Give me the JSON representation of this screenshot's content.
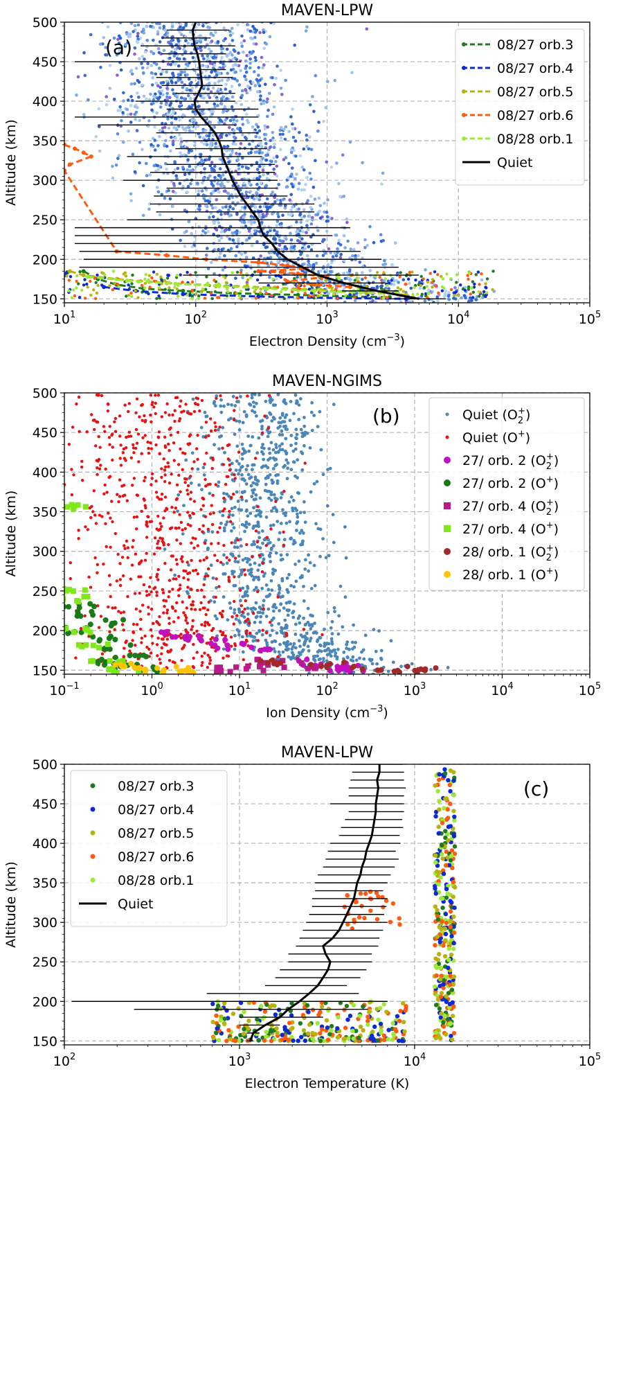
{
  "chart_data": [
    {
      "type": "line",
      "title": "MAVEN-LPW",
      "panel_label": "(a)",
      "xlabel": "Electron Density (cm",
      "xlabel_exp": "−3",
      "xlabel_end": ")",
      "ylabel": "Altitude (km)",
      "xscale": "log",
      "xlim": [
        10,
        100000
      ],
      "ylim": [
        145,
        500
      ],
      "xticks": [
        {
          "v": 10,
          "base": "10",
          "exp": "1"
        },
        {
          "v": 100,
          "base": "10",
          "exp": "2"
        },
        {
          "v": 1000,
          "base": "10",
          "exp": "3"
        },
        {
          "v": 10000,
          "base": "10",
          "exp": "4"
        },
        {
          "v": 100000,
          "base": "10",
          "exp": "5"
        }
      ],
      "yticks": [
        150,
        200,
        250,
        300,
        350,
        400,
        450,
        500
      ],
      "grid": true,
      "legend_position": "top-right",
      "legend": [
        {
          "label": "08/27 orb.3",
          "color": "#1f7a1f",
          "style": "dashed"
        },
        {
          "label": "08/27 orb.4",
          "color": "#0a2bd1",
          "style": "dashed"
        },
        {
          "label": "08/27 orb.5",
          "color": "#b8b210",
          "style": "dashed"
        },
        {
          "label": "08/27 orb.6",
          "color": "#ff5a10",
          "style": "dashed"
        },
        {
          "label": "08/28 orb.1",
          "color": "#9ee83a",
          "style": "dashed"
        },
        {
          "label": "Quiet",
          "color": "#000000",
          "style": "solid"
        }
      ],
      "quiet": {
        "alt": [
          150,
          160,
          170,
          180,
          190,
          200,
          210,
          220,
          230,
          240,
          250,
          260,
          270,
          280,
          290,
          300,
          310,
          320,
          330,
          340,
          350,
          360,
          370,
          380,
          390,
          400,
          410,
          420,
          430,
          440,
          450,
          460,
          470,
          480,
          490,
          500
        ],
        "val": [
          5000,
          2400,
          1350,
          850,
          650,
          500,
          420,
          380,
          330,
          310,
          300,
          270,
          245,
          220,
          205,
          190,
          180,
          170,
          160,
          158,
          150,
          140,
          125,
          110,
          100,
          98,
          105,
          112,
          110,
          108,
          106,
          103,
          98,
          96,
          95,
          100
        ],
        "lo": [
          3000,
          1300,
          300,
          80,
          13,
          14,
          13,
          12,
          12,
          12,
          30,
          50,
          45,
          48,
          60,
          28,
          45,
          60,
          30,
          70,
          80,
          50,
          18,
          12,
          60,
          35,
          70,
          55,
          50,
          55,
          12,
          55,
          38,
          55,
          60,
          80
        ],
        "hi": [
          8000,
          3500,
          2800,
          5000,
          3500,
          2600,
          1800,
          900,
          1100,
          1500,
          650,
          800,
          800,
          500,
          420,
          420,
          400,
          400,
          320,
          350,
          320,
          300,
          200,
          300,
          300,
          200,
          200,
          160,
          190,
          170,
          220,
          170,
          200,
          130,
          180,
          130
        ]
      },
      "scatter_quiet_color": "#3a6fd8",
      "storm_series": [
        {
          "name": "08/27 orb.3",
          "color": "#1f7a1f",
          "alt": [
            185,
            175,
            168,
            163,
            160,
            157,
            155,
            153,
            152
          ],
          "val": [
            14,
            18,
            25,
            40,
            80,
            200,
            600,
            1500,
            3000
          ]
        },
        {
          "name": "08/27 orb.4",
          "color": "#0a2bd1",
          "alt": [
            165,
            160,
            156,
            153,
            151,
            150
          ],
          "val": [
            20,
            35,
            80,
            300,
            1200,
            4000
          ]
        },
        {
          "name": "08/27 orb.5",
          "color": "#b8b210",
          "alt": [
            185,
            180,
            175,
            170,
            167,
            164,
            161,
            158,
            155
          ],
          "val": [
            11,
            14,
            25,
            60,
            150,
            400,
            900,
            2000,
            4000
          ]
        },
        {
          "name": "08/27 orb.6",
          "color": "#ff5a10",
          "alt": [
            345,
            340,
            335,
            330,
            320,
            312,
            210,
            205,
            200,
            196,
            192,
            188,
            185,
            182,
            178,
            172,
            168,
            165
          ],
          "val": [
            10,
            12,
            14,
            16,
            11,
            10,
            25,
            60,
            120,
            300,
            500,
            700,
            300,
            600,
            1000,
            500,
            800,
            1500
          ]
        },
        {
          "name": "08/28 orb.1",
          "color": "#9ee83a",
          "alt": [
            178,
            173,
            169,
            166,
            163,
            160,
            158,
            156
          ],
          "val": [
            15,
            30,
            70,
            150,
            350,
            800,
            1800,
            3500
          ]
        }
      ]
    },
    {
      "type": "scatter",
      "title": "MAVEN-NGIMS",
      "panel_label": "(b)",
      "xlabel": "Ion Density (cm",
      "xlabel_exp": "−3",
      "xlabel_end": ")",
      "ylabel": "Altitude (km)",
      "xscale": "log",
      "xlim": [
        0.1,
        100000
      ],
      "ylim": [
        145,
        500
      ],
      "xticks": [
        {
          "v": 0.1,
          "base": "10",
          "exp": "−1"
        },
        {
          "v": 1,
          "base": "10",
          "exp": "0"
        },
        {
          "v": 10,
          "base": "10",
          "exp": "1"
        },
        {
          "v": 100,
          "base": "10",
          "exp": "2"
        },
        {
          "v": 1000,
          "base": "10",
          "exp": "3"
        },
        {
          "v": 10000,
          "base": "10",
          "exp": "4"
        },
        {
          "v": 100000,
          "base": "10",
          "exp": "5"
        }
      ],
      "yticks": [
        150,
        200,
        250,
        300,
        350,
        400,
        450,
        500
      ],
      "grid": true,
      "legend_position": "top-right",
      "legend": [
        {
          "label": "Quiet (O",
          "sup": "+",
          "sub": "2",
          "end": ")",
          "color": "#4a86b8",
          "marker": "dot"
        },
        {
          "label": "Quiet (O",
          "sup": "+",
          "sub": "",
          "end": ")",
          "color": "#e81010",
          "marker": "dot"
        },
        {
          "label": "27/ orb. 2 (O",
          "sup": "+",
          "sub": "2",
          "end": ")",
          "color": "#c010c0",
          "marker": "circle"
        },
        {
          "label": "27/ orb. 2 (O",
          "sup": "+",
          "sub": "",
          "end": ")",
          "color": "#1a7a1a",
          "marker": "circle"
        },
        {
          "label": "27/ orb. 4 (O",
          "sup": "+",
          "sub": "2",
          "end": ")",
          "color": "#b81a8a",
          "marker": "square"
        },
        {
          "label": "27/ orb. 4 (O",
          "sup": "+",
          "sub": "",
          "end": ")",
          "color": "#7fe81a",
          "marker": "square"
        },
        {
          "label": "28/ orb. 1 (O",
          "sup": "+",
          "sub": "2",
          "end": ")",
          "color": "#a02a2a",
          "marker": "circle"
        },
        {
          "label": "28/ orb. 1 (O",
          "sup": "+",
          "sub": "",
          "end": ")",
          "color": "#ffc400",
          "marker": "circle"
        }
      ],
      "profiles": {
        "quiet_o2": {
          "alt": [
            150,
            160,
            170,
            180,
            190,
            200,
            215,
            230,
            250,
            270,
            290,
            310,
            330,
            350,
            370,
            390,
            410,
            430,
            450,
            470,
            490
          ],
          "val": [
            300,
            150,
            90,
            60,
            45,
            30,
            22,
            20,
            18,
            18,
            17,
            16,
            17,
            17,
            16,
            15,
            17,
            18,
            20,
            18,
            17
          ],
          "spread": 0.35
        },
        "quiet_o": {
          "alt": [
            160,
            175,
            190,
            200,
            215,
            230,
            250,
            270,
            290,
            310,
            330,
            350,
            370,
            390,
            410,
            430,
            450,
            470,
            490
          ],
          "val": [
            2,
            2.5,
            3,
            3,
            2.5,
            2,
            1.8,
            1.8,
            1.8,
            1.6,
            1.5,
            1.4,
            1.3,
            1.2,
            1.2,
            1.1,
            1.0,
            0.9,
            0.9
          ],
          "spread": 0.55
        }
      },
      "storm_points": [
        {
          "series": "27/ orb. 2 (O2+)",
          "alt": [
            195,
            190,
            185,
            180,
            175,
            160,
            155,
            152,
            150
          ],
          "val": [
            2,
            3,
            5,
            8,
            15,
            50,
            120,
            200,
            150
          ]
        },
        {
          "series": "27/ orb. 2 (O+)",
          "alt": [
            230,
            220,
            210,
            200,
            190,
            180,
            170,
            160,
            155,
            150
          ],
          "val": [
            0.15,
            0.2,
            0.3,
            0.15,
            0.25,
            0.4,
            0.6,
            0.3,
            0.5,
            0.8
          ]
        },
        {
          "series": "27/ orb. 4 (O2+)",
          "alt": [
            160,
            156,
            153,
            151
          ],
          "val": [
            20,
            50,
            15,
            8
          ]
        },
        {
          "series": "27/ orb. 4 (O+)",
          "alt": [
            355,
            250,
            240,
            200,
            180,
            160,
            150
          ],
          "val": [
            0.12,
            0.12,
            0.13,
            0.15,
            0.2,
            0.3,
            0.5
          ]
        },
        {
          "series": "28/ orb. 1 (O2+)",
          "alt": [
            160,
            156,
            153,
            151,
            150
          ],
          "val": [
            20,
            100,
            300,
            800,
            1500
          ]
        },
        {
          "series": "28/ orb. 1 (O+)",
          "alt": [
            155,
            152,
            151,
            150
          ],
          "val": [
            0.5,
            1,
            2,
            3
          ]
        }
      ]
    },
    {
      "type": "line",
      "title": "MAVEN-LPW",
      "panel_label": "(c)",
      "xlabel": "Electron Temperature (K)",
      "ylabel": "Altitude (km)",
      "xscale": "log",
      "xlim": [
        100,
        100000
      ],
      "ylim": [
        145,
        500
      ],
      "xticks": [
        {
          "v": 100,
          "base": "10",
          "exp": "2"
        },
        {
          "v": 1000,
          "base": "10",
          "exp": "3"
        },
        {
          "v": 10000,
          "base": "10",
          "exp": "4"
        },
        {
          "v": 100000,
          "base": "10",
          "exp": "5"
        }
      ],
      "yticks": [
        150,
        200,
        250,
        300,
        350,
        400,
        450,
        500
      ],
      "grid": true,
      "legend_position": "top-left",
      "legend": [
        {
          "label": "08/27 orb.3",
          "color": "#1f7a1f",
          "style": "dot"
        },
        {
          "label": "08/27 orb.4",
          "color": "#0a2bd1",
          "style": "dot"
        },
        {
          "label": "08/27 orb.5",
          "color": "#b8b210",
          "style": "dot"
        },
        {
          "label": "08/27 orb.6",
          "color": "#ff5a10",
          "style": "dot"
        },
        {
          "label": "08/28 orb.1",
          "color": "#9ee83a",
          "style": "dot"
        },
        {
          "label": "Quiet",
          "color": "#000000",
          "style": "solid"
        }
      ],
      "quiet": {
        "alt": [
          150,
          160,
          170,
          180,
          190,
          200,
          210,
          220,
          230,
          240,
          250,
          260,
          270,
          280,
          290,
          300,
          310,
          320,
          330,
          340,
          350,
          360,
          370,
          380,
          390,
          400,
          410,
          420,
          430,
          440,
          450,
          460,
          470,
          480,
          490,
          500
        ],
        "val": [
          1150,
          1200,
          1400,
          1700,
          1900,
          2200,
          2500,
          2800,
          3000,
          3200,
          3300,
          3100,
          3000,
          3400,
          3700,
          3900,
          4100,
          4300,
          4500,
          4600,
          4700,
          4900,
          5000,
          5200,
          5300,
          5500,
          5700,
          5800,
          5900,
          6000,
          6000,
          6100,
          6200,
          6100,
          6300,
          6300
        ],
        "lo": [
          1100,
          1100,
          1000,
          1000,
          250,
          110,
          650,
          1400,
          1600,
          1700,
          1900,
          1900,
          2100,
          2200,
          2300,
          2400,
          2500,
          2600,
          2600,
          2700,
          2700,
          2800,
          3000,
          3100,
          3200,
          3300,
          3700,
          3800,
          4000,
          4200,
          3300,
          4200,
          4200,
          4300,
          4400,
          4300
        ],
        "hi": [
          1200,
          1300,
          1700,
          3000,
          5400,
          7000,
          4800,
          4100,
          4900,
          5300,
          5700,
          5700,
          6200,
          6300,
          6600,
          7000,
          6700,
          6900,
          7000,
          6600,
          7000,
          7300,
          7700,
          8100,
          7800,
          8300,
          8200,
          8600,
          8500,
          8700,
          8700,
          8700,
          8900,
          8700,
          8700,
          8600
        ]
      },
      "storm_band": {
        "alt_min": 150,
        "alt_max": 495,
        "val_min": 13000,
        "val_max": 17000
      },
      "storm_low_alt": {
        "alt_min": 150,
        "alt_max": 200,
        "val_min": 700,
        "val_max": 9000
      }
    }
  ]
}
